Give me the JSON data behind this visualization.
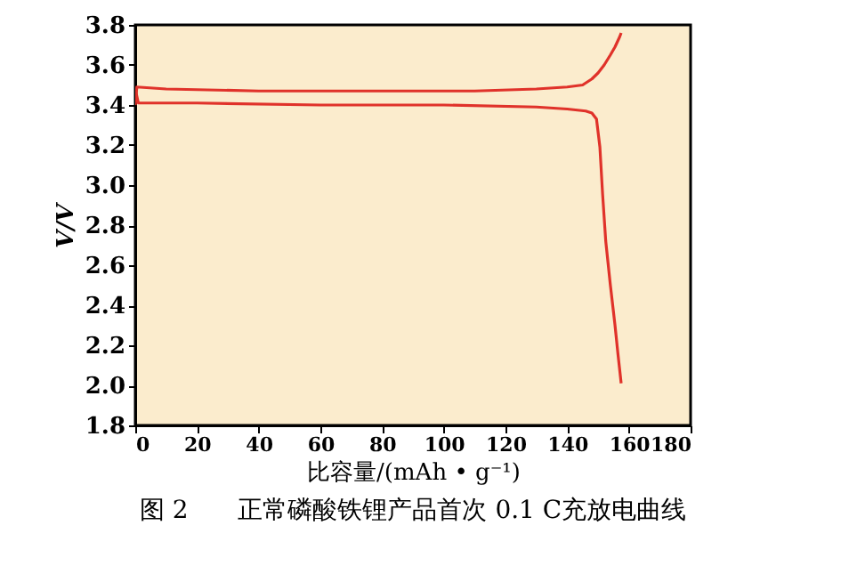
{
  "chart_data": {
    "type": "line",
    "title": "图 2　　正常磷酸铁锂产品首次 0.1 C充放电曲线",
    "xlabel": "比容量/(mAh • g⁻¹)",
    "ylabel": "V/V",
    "xlim": [
      0,
      180
    ],
    "xticks": [
      0,
      20,
      40,
      60,
      80,
      100,
      120,
      140,
      160,
      180
    ],
    "ylim": [
      1.8,
      3.8
    ],
    "yticks": [
      1.8,
      {
        "value": 2,
        "label": "2.0"
      },
      2.2,
      2.4,
      2.6,
      2.8,
      {
        "value": 3,
        "label": "3.0"
      },
      3.2,
      3.4,
      3.6,
      3.8
    ],
    "grid": false,
    "legend": false,
    "marker": "none",
    "line_style": "solid",
    "series": [
      {
        "color": "#e0322a",
        "x": [
          0,
          0.5,
          10,
          40,
          80,
          110,
          130,
          140,
          145,
          148,
          150,
          152,
          154,
          155.5,
          157,
          157.5
        ],
        "values": [
          3.4,
          3.49,
          3.48,
          3.47,
          3.47,
          3.47,
          3.48,
          3.49,
          3.5,
          3.53,
          3.56,
          3.6,
          3.65,
          3.69,
          3.74,
          3.76
        ]
      },
      {
        "color": "#e0322a",
        "x": [
          0,
          1,
          20,
          60,
          100,
          130,
          140,
          146,
          148,
          149.5,
          150.6,
          151.5,
          152.5,
          154,
          155.5,
          156.5,
          157.5
        ],
        "values": [
          3.48,
          3.41,
          3.41,
          3.4,
          3.4,
          3.39,
          3.38,
          3.37,
          3.36,
          3.33,
          3.19,
          2.95,
          2.72,
          2.5,
          2.3,
          2.15,
          2.01
        ]
      }
    ]
  }
}
